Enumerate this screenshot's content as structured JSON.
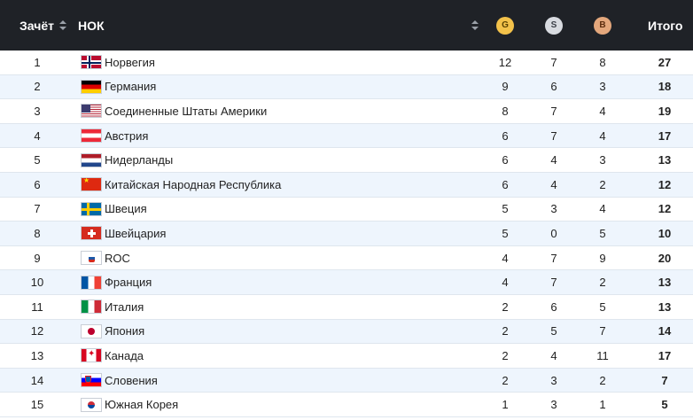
{
  "header": {
    "rank_label": "Зачёт",
    "nok_label": "НОК",
    "gold_label": "G",
    "silver_label": "S",
    "bronze_label": "B",
    "total_label": "Итого"
  },
  "colors": {
    "header_bg": "#1f2227",
    "row_alt_bg": "#eef5fd",
    "gold": "#f3c24a",
    "silver": "#d8dbe0",
    "bronze": "#e3a77c"
  },
  "rows": [
    {
      "rank": "1",
      "country": "Норвегия",
      "flag": "norway",
      "gold": "12",
      "silver": "7",
      "bronze": "8",
      "total": "27"
    },
    {
      "rank": "2",
      "country": "Германия",
      "flag": "germany",
      "gold": "9",
      "silver": "6",
      "bronze": "3",
      "total": "18"
    },
    {
      "rank": "3",
      "country": "Соединенные Штаты Америки",
      "flag": "usa",
      "gold": "8",
      "silver": "7",
      "bronze": "4",
      "total": "19"
    },
    {
      "rank": "4",
      "country": "Австрия",
      "flag": "austria",
      "gold": "6",
      "silver": "7",
      "bronze": "4",
      "total": "17"
    },
    {
      "rank": "5",
      "country": "Нидерланды",
      "flag": "netherlands",
      "gold": "6",
      "silver": "4",
      "bronze": "3",
      "total": "13"
    },
    {
      "rank": "6",
      "country": "Китайская Народная Республика",
      "flag": "china",
      "gold": "6",
      "silver": "4",
      "bronze": "2",
      "total": "12"
    },
    {
      "rank": "7",
      "country": "Швеция",
      "flag": "sweden",
      "gold": "5",
      "silver": "3",
      "bronze": "4",
      "total": "12"
    },
    {
      "rank": "8",
      "country": "Швейцария",
      "flag": "swiss",
      "gold": "5",
      "silver": "0",
      "bronze": "5",
      "total": "10"
    },
    {
      "rank": "9",
      "country": "ROC",
      "flag": "roc",
      "gold": "4",
      "silver": "7",
      "bronze": "9",
      "total": "20"
    },
    {
      "rank": "10",
      "country": "Франция",
      "flag": "france",
      "gold": "4",
      "silver": "7",
      "bronze": "2",
      "total": "13"
    },
    {
      "rank": "11",
      "country": "Италия",
      "flag": "italy",
      "gold": "2",
      "silver": "6",
      "bronze": "5",
      "total": "13"
    },
    {
      "rank": "12",
      "country": "Япония",
      "flag": "japan",
      "gold": "2",
      "silver": "5",
      "bronze": "7",
      "total": "14"
    },
    {
      "rank": "13",
      "country": "Канада",
      "flag": "canada",
      "gold": "2",
      "silver": "4",
      "bronze": "11",
      "total": "17"
    },
    {
      "rank": "14",
      "country": "Словения",
      "flag": "slovenia",
      "gold": "2",
      "silver": "3",
      "bronze": "2",
      "total": "7"
    },
    {
      "rank": "15",
      "country": "Южная Корея",
      "flag": "korea",
      "gold": "1",
      "silver": "3",
      "bronze": "1",
      "total": "5"
    }
  ]
}
